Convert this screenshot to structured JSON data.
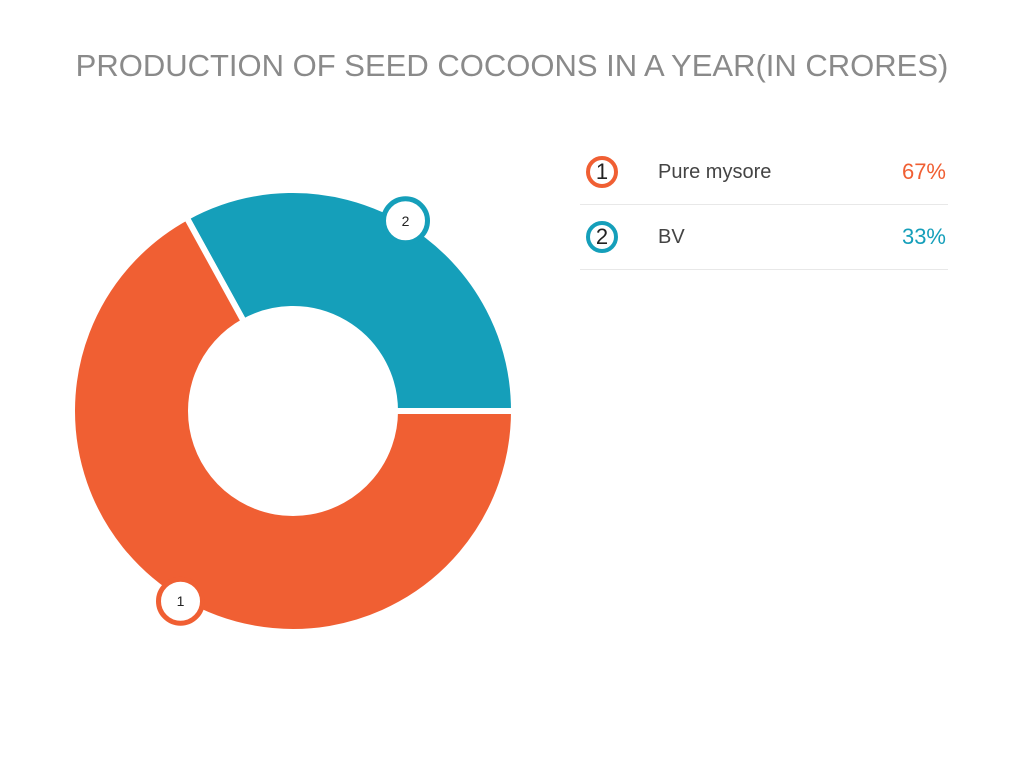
{
  "chart_data": {
    "type": "pie",
    "variant": "donut",
    "title": "PRODUCTION OF SEED COCOONS IN A YEAR(IN CRORES)",
    "slices": [
      {
        "index": "1",
        "label": "Pure mysore",
        "value": 67,
        "value_label": "67%",
        "color": "#f05f33"
      },
      {
        "index": "2",
        "label": "BV",
        "value": 33,
        "value_label": "33%",
        "color": "#159fba"
      }
    ],
    "legend": "right"
  }
}
